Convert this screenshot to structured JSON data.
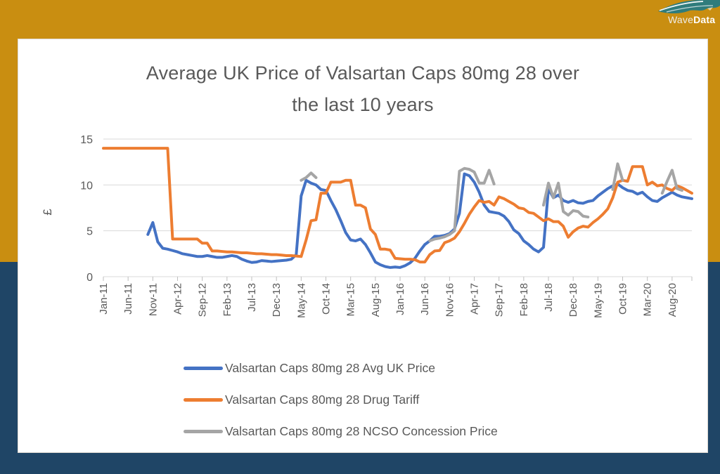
{
  "page": {
    "background_top_color": "#C98E11",
    "background_bottom_color": "#1F4566",
    "card_color": "#FFFFFF"
  },
  "logo": {
    "name_light": "Wave",
    "name_bold": "Data",
    "wave_color": "#2F7C7C"
  },
  "chart_data": {
    "type": "line",
    "title": "Average UK Price of Valsartan Caps 80mg 28 over the last 10 years",
    "title_lines": [
      "Average UK Price of Valsartan Caps 80mg 28 over",
      "the last 10 years"
    ],
    "ylabel": "£",
    "ylim": [
      0,
      15
    ],
    "yticks": [
      0,
      5,
      10,
      15
    ],
    "x_start": "Jan-11",
    "x_end": "Dec-20",
    "x_interval_months": 1,
    "x_tick_every_n_points": 5,
    "x_tick_labels": [
      "Jan-11",
      "Jun-11",
      "Nov-11",
      "Apr-12",
      "Sep-12",
      "Feb-13",
      "Jul-13",
      "Dec-13",
      "May-14",
      "Oct-14",
      "Mar-15",
      "Aug-15",
      "Jan-16",
      "Jun-16",
      "Nov-16",
      "Apr-17",
      "Sep-17",
      "Feb-18",
      "Jul-18",
      "Dec-18",
      "May-19",
      "Oct-19",
      "Mar-20",
      "Aug-20"
    ],
    "gridlines": "horizontal",
    "gridline_color": "#D9D9D9",
    "tick_color": "#BFBFBF",
    "axis_text_color": "#595959",
    "legend_position": "bottom-left",
    "series": [
      {
        "name": "Valsartan Caps 80mg 28 Avg UK Price",
        "color": "#4472C4",
        "values": [
          null,
          null,
          null,
          null,
          null,
          null,
          null,
          null,
          null,
          4.6,
          5.9,
          3.8,
          3.1,
          3.0,
          2.85,
          2.7,
          2.5,
          2.4,
          2.3,
          2.2,
          2.2,
          2.3,
          2.2,
          2.1,
          2.1,
          2.2,
          2.3,
          2.2,
          1.9,
          1.7,
          1.55,
          1.6,
          1.75,
          1.7,
          1.65,
          1.7,
          1.75,
          1.8,
          1.9,
          2.4,
          8.8,
          10.5,
          10.2,
          10.0,
          9.5,
          9.4,
          8.3,
          7.3,
          6.1,
          4.8,
          4.0,
          3.9,
          4.1,
          3.5,
          2.6,
          1.6,
          1.3,
          1.1,
          1.0,
          1.05,
          1.0,
          1.2,
          1.5,
          2.0,
          2.8,
          3.5,
          3.9,
          4.4,
          4.4,
          4.5,
          4.7,
          5.2,
          6.9,
          11.2,
          11.0,
          10.3,
          9.2,
          7.8,
          7.1,
          7.0,
          6.9,
          6.6,
          6.0,
          5.1,
          4.7,
          3.9,
          3.5,
          3.0,
          2.7,
          3.2,
          9.6,
          8.6,
          8.9,
          8.3,
          8.1,
          8.3,
          8.05,
          8.0,
          8.2,
          8.3,
          8.8,
          9.2,
          9.6,
          9.9,
          10.1,
          9.7,
          9.4,
          9.3,
          9.0,
          9.2,
          8.7,
          8.3,
          8.2,
          8.6,
          8.9,
          9.2,
          8.9,
          8.7,
          8.6,
          8.5
        ]
      },
      {
        "name": "Valsartan Caps 80mg 28 Drug Tariff",
        "color": "#ED7D31",
        "values": [
          14,
          14,
          14,
          14,
          14,
          14,
          14,
          14,
          14,
          14,
          14,
          14,
          14,
          14,
          4.1,
          4.1,
          4.1,
          4.1,
          4.1,
          4.1,
          3.65,
          3.65,
          2.8,
          2.8,
          2.75,
          2.7,
          2.7,
          2.65,
          2.6,
          2.6,
          2.55,
          2.5,
          2.5,
          2.45,
          2.4,
          2.4,
          2.35,
          2.3,
          2.3,
          2.25,
          2.2,
          4.0,
          6.1,
          6.2,
          9.1,
          9.1,
          10.3,
          10.3,
          10.3,
          10.5,
          10.5,
          7.8,
          7.8,
          7.5,
          5.2,
          4.6,
          3.0,
          3.0,
          2.9,
          2.0,
          1.95,
          1.9,
          1.9,
          1.85,
          1.6,
          1.6,
          2.4,
          2.8,
          2.85,
          3.7,
          3.9,
          4.2,
          4.9,
          5.8,
          6.8,
          7.6,
          8.3,
          8.1,
          8.2,
          7.8,
          8.7,
          8.5,
          8.2,
          7.9,
          7.5,
          7.4,
          7.0,
          6.9,
          6.5,
          6.1,
          6.3,
          6.0,
          6.0,
          5.5,
          4.3,
          4.9,
          5.3,
          5.5,
          5.4,
          5.9,
          6.3,
          6.8,
          7.4,
          8.6,
          10.3,
          10.5,
          10.4,
          12.0,
          12.0,
          12.0,
          10.0,
          10.3,
          9.9,
          10.0,
          9.6,
          9.4,
          9.9,
          9.7,
          9.4,
          9.1
        ]
      },
      {
        "name": "Valsartan Caps 80mg 28 NCSO Concession Price",
        "color": "#A5A5A5",
        "values": [
          null,
          null,
          null,
          null,
          null,
          null,
          null,
          null,
          null,
          null,
          null,
          null,
          null,
          null,
          null,
          null,
          null,
          null,
          null,
          null,
          null,
          null,
          null,
          null,
          null,
          null,
          null,
          null,
          null,
          null,
          null,
          null,
          null,
          null,
          null,
          null,
          null,
          null,
          null,
          null,
          10.5,
          10.8,
          11.3,
          10.8,
          null,
          null,
          null,
          null,
          null,
          null,
          null,
          null,
          null,
          null,
          null,
          null,
          null,
          null,
          null,
          null,
          null,
          null,
          null,
          null,
          null,
          null,
          3.9,
          4.1,
          4.2,
          4.35,
          4.6,
          5.0,
          11.5,
          11.8,
          11.7,
          11.4,
          10.2,
          10.2,
          11.6,
          10.1,
          null,
          null,
          null,
          null,
          null,
          null,
          null,
          null,
          null,
          7.8,
          10.2,
          8.6,
          10.2,
          7.1,
          6.7,
          7.2,
          7.1,
          6.6,
          6.5,
          null,
          null,
          null,
          null,
          9.5,
          12.3,
          10.5,
          null,
          null,
          null,
          null,
          null,
          null,
          null,
          9.1,
          10.4,
          11.6,
          9.6,
          9.4,
          null,
          null
        ]
      }
    ]
  }
}
